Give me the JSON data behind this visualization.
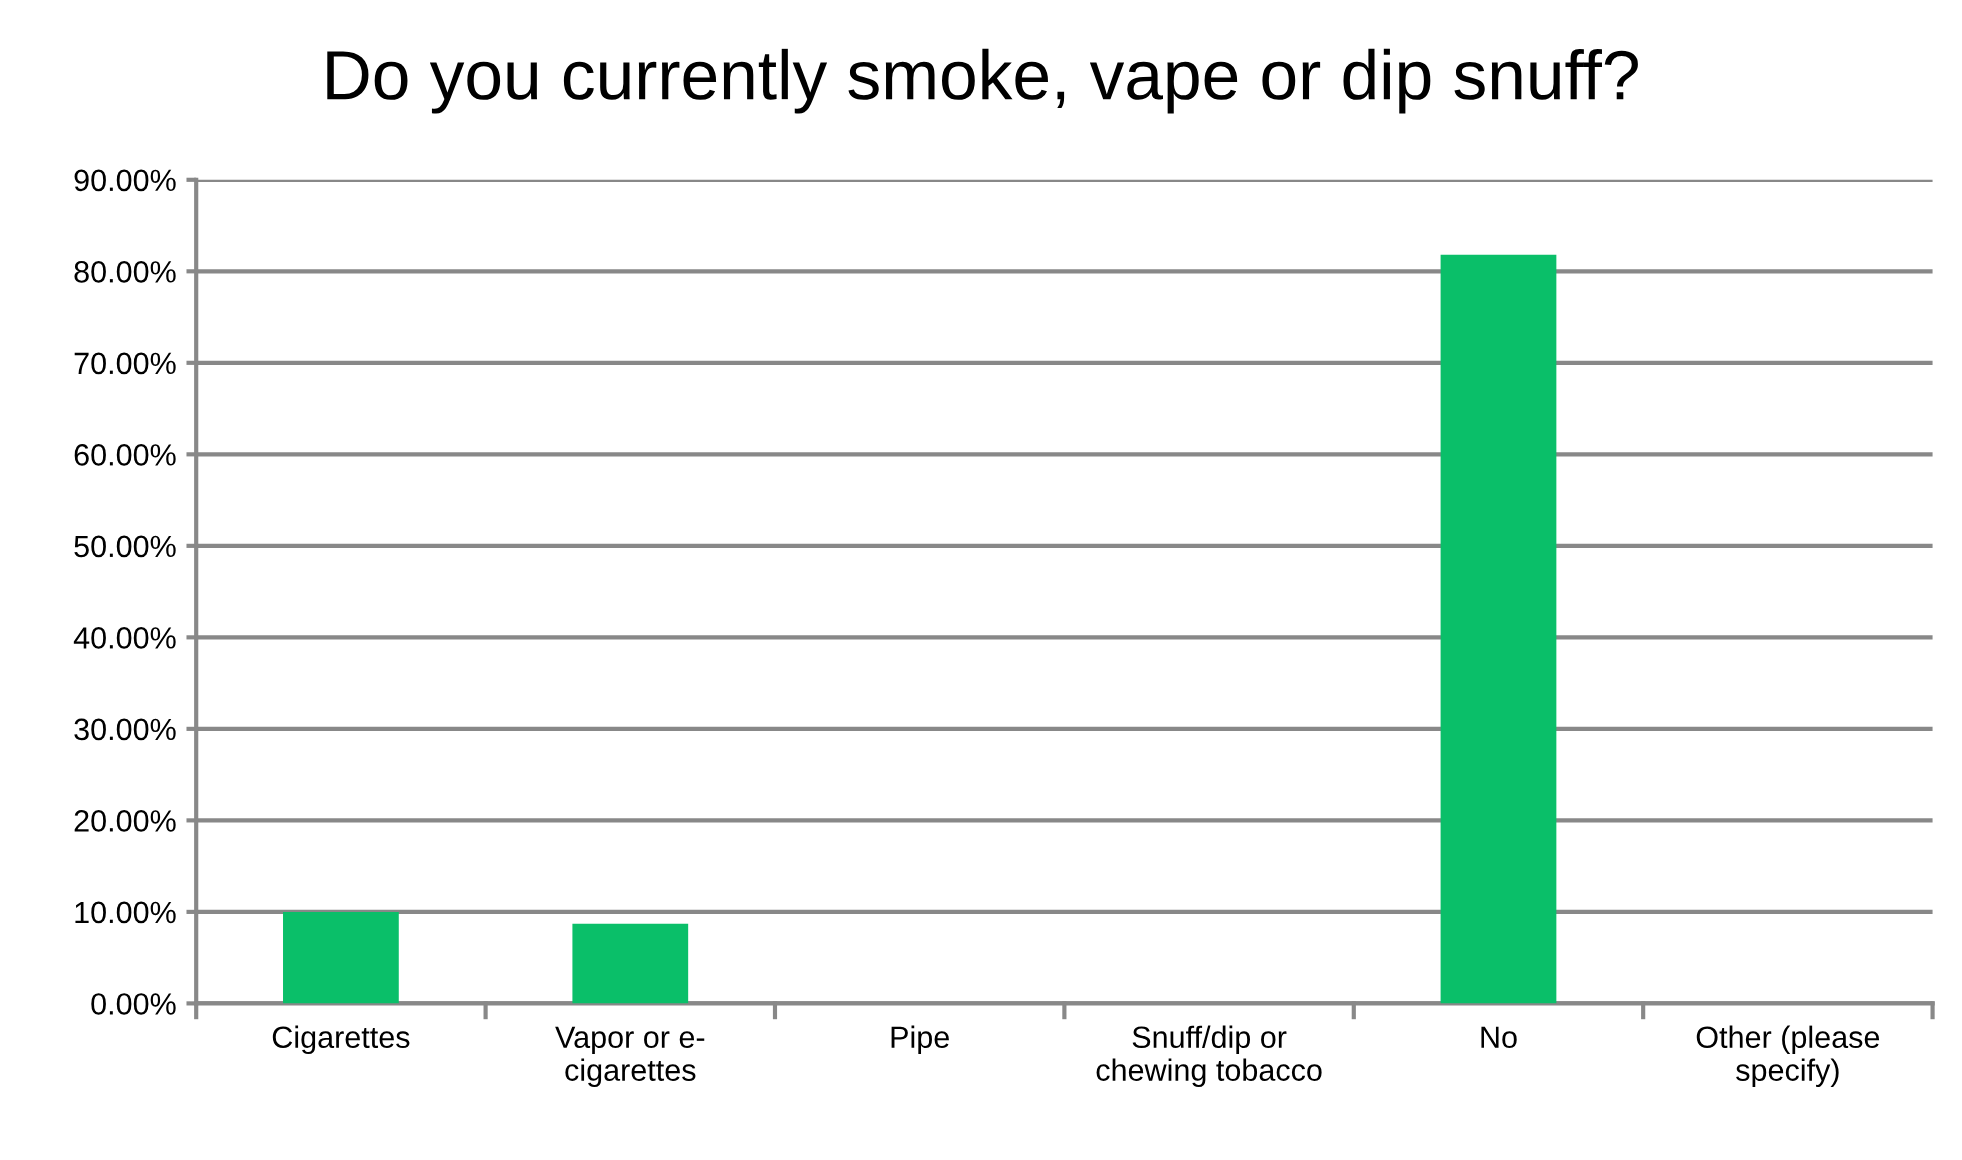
{
  "chart_data": {
    "type": "bar",
    "title": "Do you currently smoke, vape or dip snuff?",
    "categories": [
      "Cigarettes",
      "Vapor or e-\ncigarettes",
      "Pipe",
      "Snuff/dip or\nchewing tobacco",
      "No",
      "Other (please\nspecify)"
    ],
    "values": [
      10.0,
      8.7,
      0,
      0,
      81.8,
      0
    ],
    "color": "#0abf69",
    "ylim": [
      0,
      90
    ],
    "yticks": [
      {
        "value": 0,
        "label": "0.00%"
      },
      {
        "value": 10,
        "label": "10.00%"
      },
      {
        "value": 20,
        "label": "20.00%"
      },
      {
        "value": 30,
        "label": "30.00%"
      },
      {
        "value": 40,
        "label": "40.00%"
      },
      {
        "value": 50,
        "label": "50.00%"
      },
      {
        "value": 60,
        "label": "60.00%"
      },
      {
        "value": 70,
        "label": "70.00%"
      },
      {
        "value": 80,
        "label": "80.00%"
      },
      {
        "value": 90,
        "label": "90.00%"
      }
    ],
    "grid": "y"
  }
}
